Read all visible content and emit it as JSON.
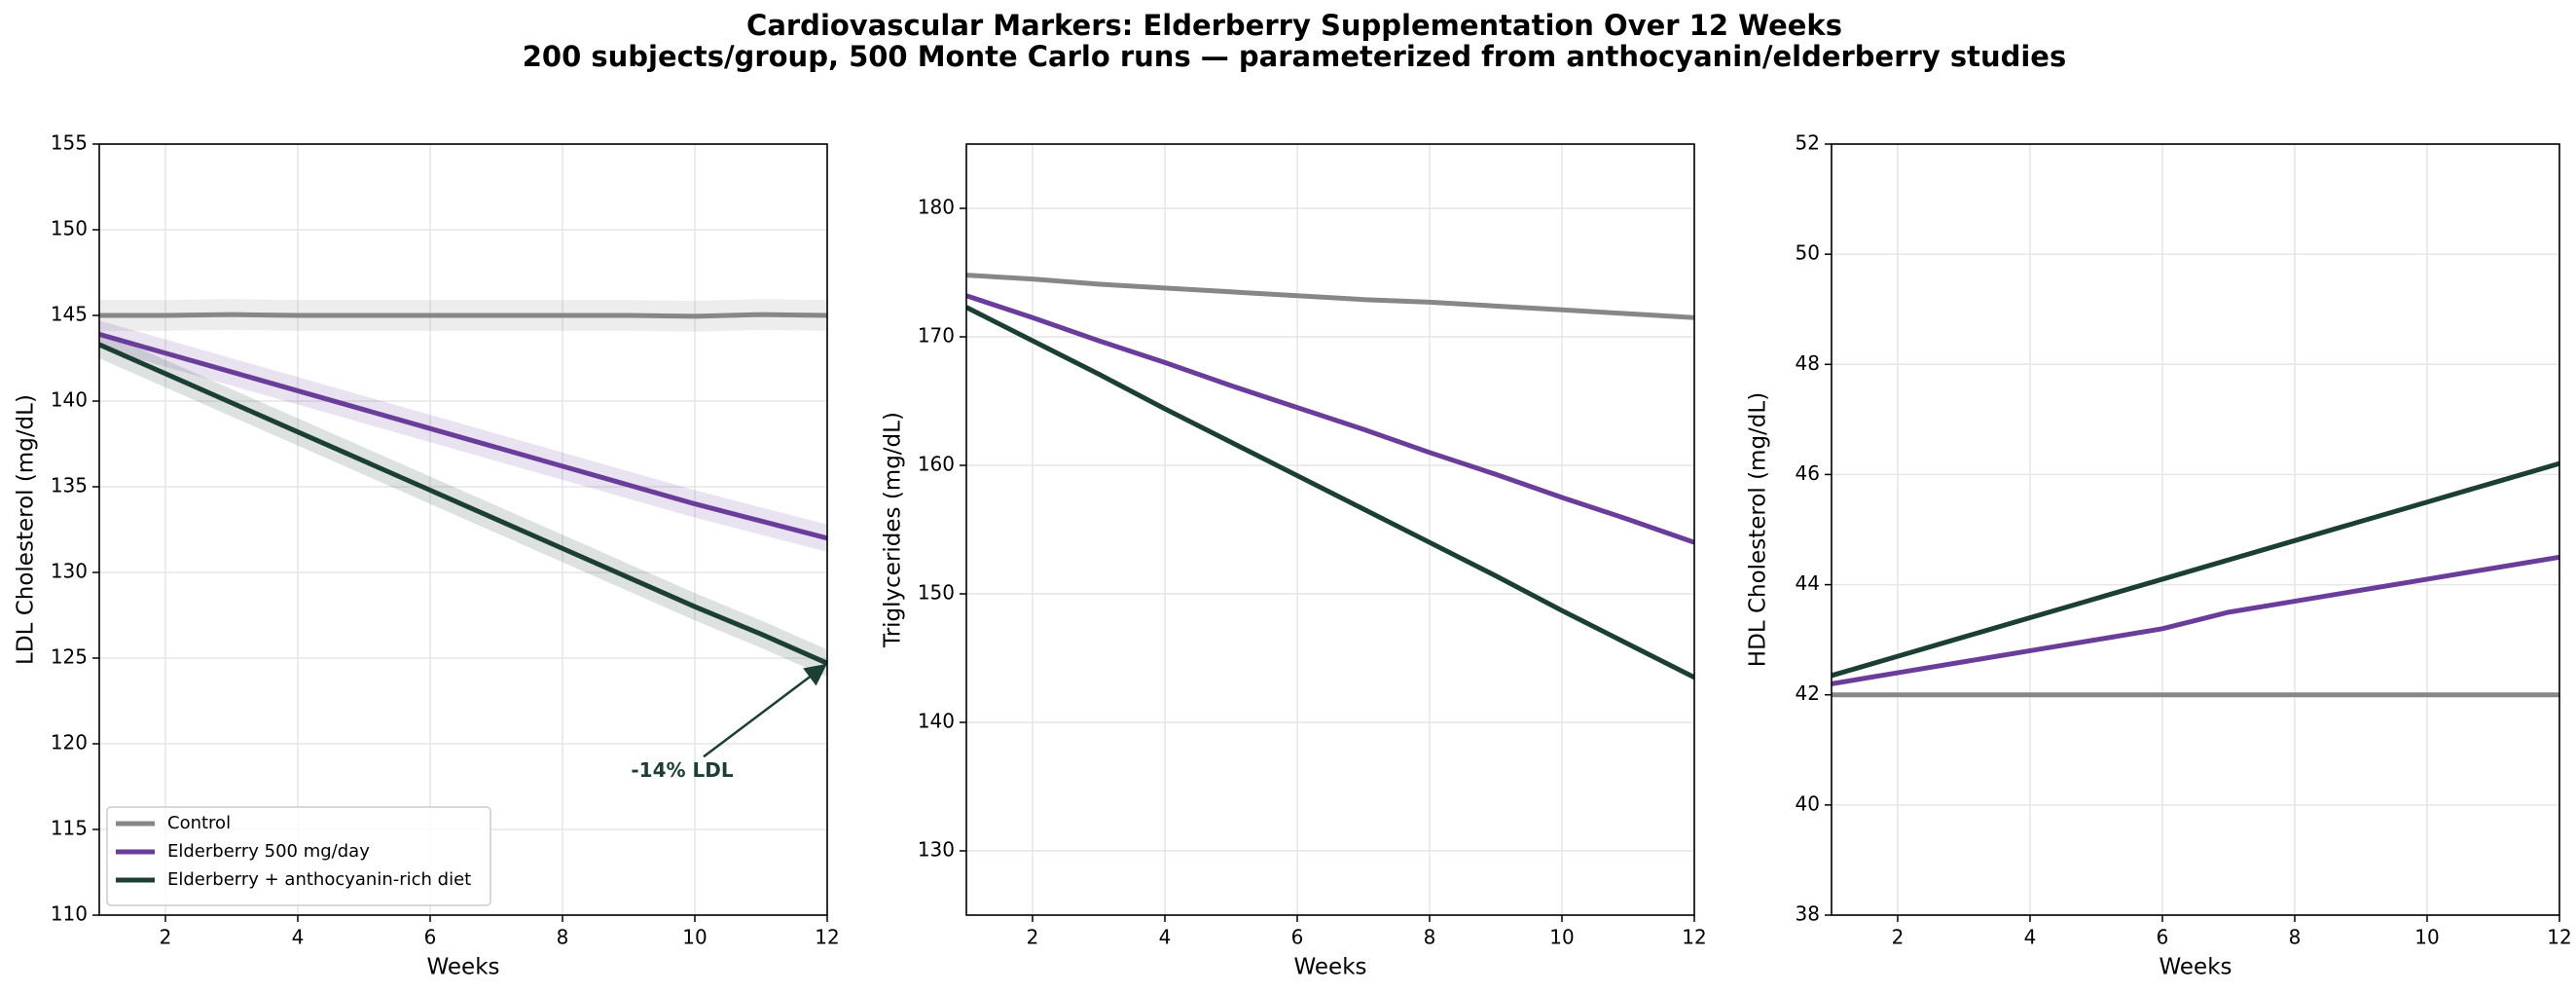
{
  "title": "Cardiovascular Markers: Elderberry Supplementation Over 12 Weeks",
  "subtitle": "200 subjects/group, 500 Monte Carlo runs — parameterized from anthocyanin/elderberry studies",
  "chart_data": [
    {
      "type": "line",
      "xlabel": "Weeks",
      "ylabel": "LDL Cholesterol (mg/dL)",
      "x": [
        1,
        2,
        3,
        4,
        5,
        6,
        7,
        8,
        9,
        10,
        11,
        12
      ],
      "xlim": [
        1,
        12
      ],
      "xticks": [
        2,
        4,
        6,
        8,
        10,
        12
      ],
      "ylim": [
        110,
        155
      ],
      "yticks": [
        110,
        115,
        120,
        125,
        130,
        135,
        140,
        145,
        150,
        155
      ],
      "grid": true,
      "legend": "lower left",
      "annotation": "-14% LDL",
      "series": [
        {
          "name": "Control",
          "color": "#878787",
          "values": [
            145,
            145,
            145.05,
            145,
            145,
            145,
            145,
            145,
            145,
            144.95,
            145.05,
            145
          ],
          "lower": [
            144.1,
            144.1,
            144.15,
            144.1,
            144.1,
            144.1,
            144.1,
            144.1,
            144.1,
            144.05,
            144.15,
            144.1
          ],
          "upper": [
            145.9,
            145.9,
            145.95,
            145.9,
            145.9,
            145.9,
            145.9,
            145.9,
            145.9,
            145.85,
            145.95,
            145.9
          ]
        },
        {
          "name": "Elderberry 500 mg/day",
          "color": "#6a3d9a",
          "values": [
            143.9,
            142.8,
            141.7,
            140.6,
            139.5,
            138.4,
            137.3,
            136.2,
            135.1,
            134.0,
            133.0,
            132.0
          ],
          "lower": [
            143.1,
            142.0,
            140.9,
            139.8,
            138.7,
            137.6,
            136.5,
            135.4,
            134.3,
            133.2,
            132.2,
            131.2
          ],
          "upper": [
            144.7,
            143.6,
            142.5,
            141.4,
            140.3,
            139.2,
            138.1,
            137.0,
            135.9,
            134.8,
            133.8,
            132.8
          ]
        },
        {
          "name": "Elderberry + anthocyanin-rich diet",
          "color": "#1c3f35",
          "values": [
            143.3,
            141.6,
            139.9,
            138.2,
            136.5,
            134.8,
            133.1,
            131.4,
            129.7,
            128.0,
            126.4,
            124.7
          ],
          "lower": [
            142.5,
            140.8,
            139.1,
            137.4,
            135.7,
            134.0,
            132.3,
            130.6,
            128.9,
            127.2,
            125.6,
            123.9
          ],
          "upper": [
            144.1,
            142.4,
            140.7,
            139.0,
            137.3,
            135.6,
            133.9,
            132.2,
            130.5,
            128.8,
            127.2,
            125.5
          ]
        }
      ]
    },
    {
      "type": "line",
      "xlabel": "Weeks",
      "ylabel": "Triglycerides (mg/dL)",
      "x": [
        1,
        2,
        3,
        4,
        5,
        6,
        7,
        8,
        9,
        10,
        11,
        12
      ],
      "xlim": [
        1,
        12
      ],
      "xticks": [
        2,
        4,
        6,
        8,
        10,
        12
      ],
      "ylim": [
        125,
        185
      ],
      "yticks": [
        130,
        140,
        150,
        160,
        170,
        180
      ],
      "grid": true,
      "series": [
        {
          "color": "#878787",
          "values": [
            174.8,
            174.5,
            174.1,
            173.8,
            173.5,
            173.2,
            172.9,
            172.7,
            172.4,
            172.1,
            171.8,
            171.5
          ]
        },
        {
          "color": "#6a3d9a",
          "values": [
            173.2,
            171.5,
            169.7,
            168.0,
            166.2,
            164.5,
            162.8,
            161.0,
            159.3,
            157.5,
            155.8,
            154.0
          ]
        },
        {
          "color": "#1c3f35",
          "values": [
            172.3,
            169.7,
            167.1,
            164.4,
            161.8,
            159.2,
            156.6,
            154.0,
            151.4,
            148.7,
            146.1,
            143.5
          ]
        }
      ]
    },
    {
      "type": "line",
      "xlabel": "Weeks",
      "ylabel": "HDL Cholesterol (mg/dL)",
      "x": [
        1,
        2,
        3,
        4,
        5,
        6,
        7,
        8,
        9,
        10,
        11,
        12
      ],
      "xlim": [
        1,
        12
      ],
      "xticks": [
        2,
        4,
        6,
        8,
        10,
        12
      ],
      "ylim": [
        38,
        52
      ],
      "yticks": [
        38,
        40,
        42,
        44,
        46,
        48,
        50,
        52
      ],
      "grid": true,
      "series": [
        {
          "color": "#878787",
          "values": [
            42.0,
            42.0,
            42.0,
            42.0,
            42.0,
            42.0,
            42.0,
            42.0,
            42.0,
            42.0,
            42.0,
            42.0
          ]
        },
        {
          "color": "#6a3d9a",
          "values": [
            42.2,
            42.4,
            42.6,
            42.8,
            43.0,
            43.2,
            43.5,
            43.7,
            43.9,
            44.1,
            44.3,
            44.5
          ]
        },
        {
          "color": "#1c3f35",
          "values": [
            42.35,
            42.7,
            43.05,
            43.4,
            43.75,
            44.1,
            44.45,
            44.8,
            45.15,
            45.5,
            45.85,
            46.2
          ]
        }
      ]
    }
  ]
}
